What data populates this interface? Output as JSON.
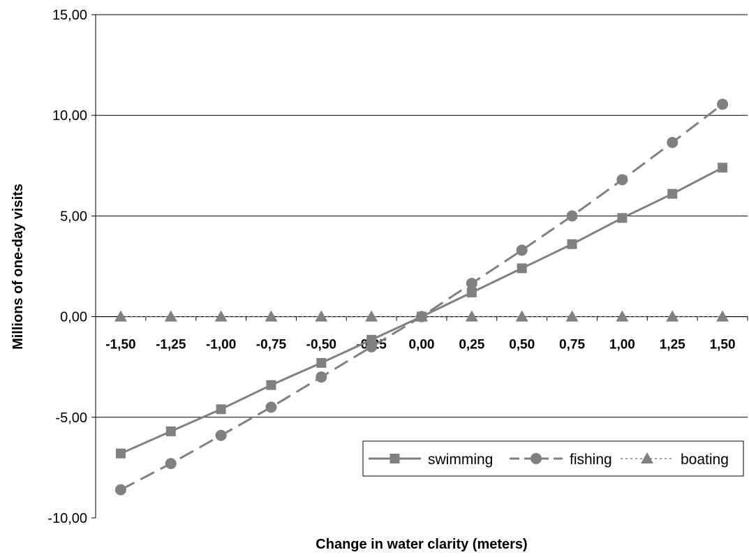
{
  "chart_data": {
    "type": "line",
    "xlabel": "Change in water clarity (meters)",
    "ylabel": "Millions of one-day visits",
    "x": [
      -1.5,
      -1.25,
      -1.0,
      -0.75,
      -0.5,
      -0.25,
      0.0,
      0.25,
      0.5,
      0.75,
      1.0,
      1.25,
      1.5
    ],
    "x_tick_labels": [
      "-1,50",
      "-1,25",
      "-1,00",
      "-0,75",
      "-0,50",
      "-0,25",
      "0,00",
      "0,25",
      "0,50",
      "0,75",
      "1,00",
      "1,25",
      "1,50"
    ],
    "ylim": [
      -10,
      15
    ],
    "y_ticks": [
      -10,
      -5,
      0,
      5,
      10,
      15
    ],
    "y_tick_labels": [
      "-10,00",
      "-5,00",
      "0,00",
      "5,00",
      "10,00",
      "15,00"
    ],
    "grid": "horizontal",
    "legend_position": "bottom-right",
    "series": [
      {
        "name": "swimming",
        "marker": "square",
        "line": "solid",
        "color": "#808080",
        "values": [
          -6.8,
          -5.7,
          -4.6,
          -3.4,
          -2.3,
          -1.15,
          0.0,
          1.2,
          2.4,
          3.6,
          4.9,
          6.1,
          7.4
        ]
      },
      {
        "name": "fishing",
        "marker": "circle",
        "line": "dashed",
        "color": "#808080",
        "values": [
          -8.6,
          -7.3,
          -5.9,
          -4.5,
          -3.0,
          -1.5,
          0.0,
          1.65,
          3.3,
          5.0,
          6.8,
          8.65,
          10.55
        ]
      },
      {
        "name": "boating",
        "marker": "triangle",
        "line": "dotted",
        "color": "#808080",
        "values": [
          0,
          0,
          0,
          0,
          0,
          0,
          0,
          0,
          0,
          0,
          0,
          0,
          0
        ]
      }
    ]
  }
}
